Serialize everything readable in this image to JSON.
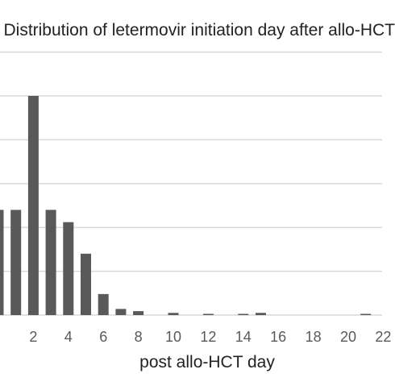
{
  "chart_data": {
    "type": "bar",
    "title": "Distribution of letermovir initiation day after allo-HCT",
    "xlabel": "post allo-HCT day",
    "ylabel": "",
    "xlim": [
      0,
      23
    ],
    "ylim": [
      0,
      50
    ],
    "grid": true,
    "x_ticks": [
      2,
      4,
      6,
      8,
      10,
      12,
      14,
      16,
      18,
      20,
      22
    ],
    "x": [
      0,
      1,
      2,
      3,
      4,
      5,
      6,
      7,
      8,
      9,
      10,
      11,
      12,
      13,
      14,
      15,
      16,
      17,
      18,
      19,
      20,
      21,
      22
    ],
    "values": [
      24,
      24,
      50,
      24,
      21.2,
      14,
      4.8,
      1.4,
      0.9,
      0,
      0.5,
      0,
      0.2,
      0,
      0.2,
      0.5,
      0,
      0,
      0,
      0,
      0,
      0.2,
      0
    ],
    "bar_color": "#595959",
    "grid_color": "#d9d9d9",
    "axis_color": "#d9d9d9",
    "text_color": "#595959"
  }
}
